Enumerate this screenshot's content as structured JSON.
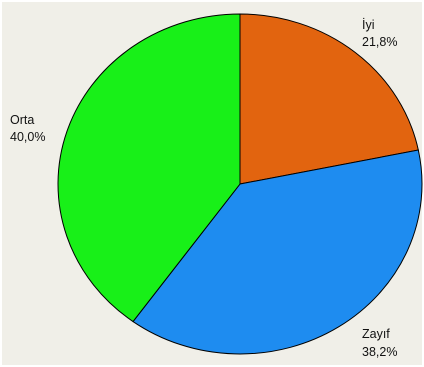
{
  "chart_data": {
    "type": "pie",
    "title": "",
    "slices": [
      {
        "label": "İyi",
        "value": 21.8,
        "value_label": "21,8%",
        "color": "#e2640f"
      },
      {
        "label": "Zayıf",
        "value": 38.2,
        "value_label": "38,2%",
        "color": "#1e8cf0"
      },
      {
        "label": "Orta",
        "value": 40.0,
        "value_label": "40,0%",
        "color": "#18f018"
      }
    ],
    "start": "12 o'clock",
    "direction": "clockwise",
    "legend": "none",
    "background_color": "#f0efe8",
    "outline_color": "#000000"
  }
}
